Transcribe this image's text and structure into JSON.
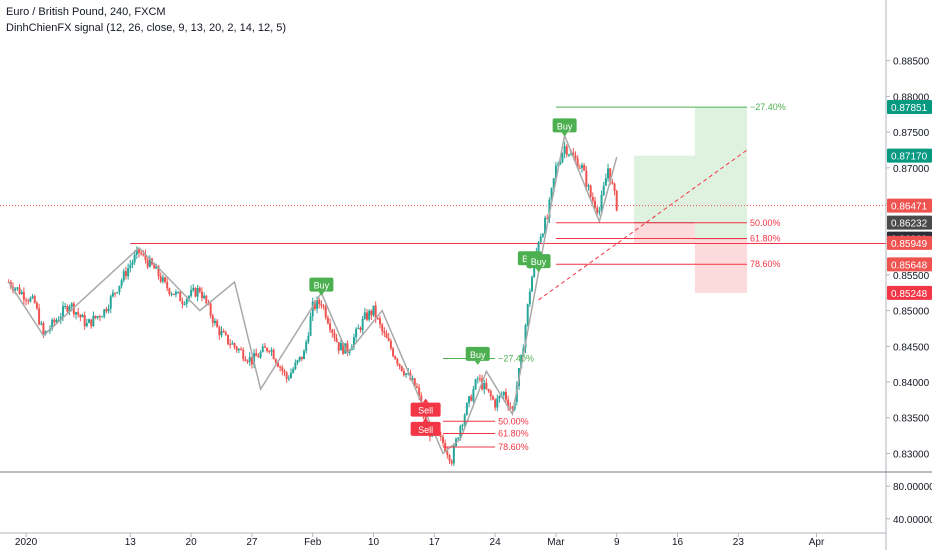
{
  "header": {
    "symbol_line": "Euro / British Pound, 240, FXCM",
    "indicator_line": "DinhChienFX signal (12, 26, close, 9, 13, 20, 2, 14, 12, 5)"
  },
  "chart_data": {
    "type": "candlestick",
    "title": "Euro / British Pound, 240, FXCM",
    "price_axis": {
      "range": [
        0.8274,
        0.8935
      ],
      "ticks": [
        "0.88500",
        "0.88000",
        "0.87500",
        "0.87000",
        "0.86500",
        "0.86000",
        "0.85500",
        "0.85000",
        "0.84500",
        "0.84000",
        "0.83500",
        "0.83000"
      ],
      "tick_values": [
        0.885,
        0.88,
        0.875,
        0.87,
        0.865,
        0.86,
        0.855,
        0.85,
        0.845,
        0.84,
        0.835,
        0.83
      ]
    },
    "indicator_axis": {
      "range": [
        25,
        95
      ],
      "ticks": [
        "80.00000",
        "40.00000"
      ],
      "tick_values": [
        80,
        40
      ]
    },
    "time_axis": {
      "range": [
        "2019-12-29",
        "2020-04-09"
      ],
      "ticks": [
        "2020",
        "13",
        "20",
        "27",
        "Feb",
        "10",
        "17",
        "24",
        "Mar",
        "9",
        "16",
        "23",
        "Apr"
      ],
      "tick_dates": [
        "2020-01-01",
        "2020-01-13",
        "2020-01-20",
        "2020-01-27",
        "2020-02-03",
        "2020-02-10",
        "2020-02-17",
        "2020-02-24",
        "2020-03-02",
        "2020-03-09",
        "2020-03-16",
        "2020-03-23",
        "2020-04-01"
      ]
    },
    "price_path": [
      [
        "2019-12-30",
        0.854
      ],
      [
        "2020-01-02",
        0.851
      ],
      [
        "2020-01-03",
        0.8465
      ],
      [
        "2020-01-06",
        0.851
      ],
      [
        "2020-01-08",
        0.848
      ],
      [
        "2020-01-10",
        0.85
      ],
      [
        "2020-01-13",
        0.8565
      ],
      [
        "2020-01-14",
        0.8582
      ],
      [
        "2020-01-16",
        0.8555
      ],
      [
        "2020-01-17",
        0.8535
      ],
      [
        "2020-01-19",
        0.8515
      ],
      [
        "2020-01-21",
        0.853
      ],
      [
        "2020-01-23",
        0.8475
      ],
      [
        "2020-01-24",
        0.846
      ],
      [
        "2020-01-27",
        0.843
      ],
      [
        "2020-01-29",
        0.845
      ],
      [
        "2020-01-31",
        0.8405
      ],
      [
        "2020-02-02",
        0.844
      ],
      [
        "2020-02-03",
        0.8505
      ],
      [
        "2020-02-04",
        0.8512
      ],
      [
        "2020-02-06",
        0.845
      ],
      [
        "2020-02-07",
        0.8445
      ],
      [
        "2020-02-09",
        0.849
      ],
      [
        "2020-02-10",
        0.85
      ],
      [
        "2020-02-11",
        0.847
      ],
      [
        "2020-02-13",
        0.8425
      ],
      [
        "2020-02-15",
        0.839
      ],
      [
        "2020-02-16",
        0.8335
      ],
      [
        "2020-02-18",
        0.8315
      ],
      [
        "2020-02-19",
        0.8292
      ],
      [
        "2020-02-20",
        0.834
      ],
      [
        "2020-02-22",
        0.8405
      ],
      [
        "2020-02-24",
        0.837
      ],
      [
        "2020-02-25",
        0.8385
      ],
      [
        "2020-02-26",
        0.836
      ],
      [
        "2020-02-27",
        0.843
      ],
      [
        "2020-02-28",
        0.853
      ],
      [
        "2020-02-29",
        0.86
      ],
      [
        "2020-03-01",
        0.863
      ],
      [
        "2020-03-02",
        0.87
      ],
      [
        "2020-03-03",
        0.873
      ],
      [
        "2020-03-05",
        0.87
      ],
      [
        "2020-03-06",
        0.866
      ],
      [
        "2020-03-07",
        0.864
      ],
      [
        "2020-03-08",
        0.87
      ],
      [
        "2020-03-09",
        0.8647
      ]
    ],
    "zigzag": [
      [
        "2019-12-30",
        0.854
      ],
      [
        "2020-01-03",
        0.8465
      ],
      [
        "2020-01-14",
        0.8588
      ],
      [
        "2020-01-21",
        0.85
      ],
      [
        "2020-01-25",
        0.854
      ],
      [
        "2020-01-28",
        0.839
      ],
      [
        "2020-02-04",
        0.8525
      ],
      [
        "2020-02-07",
        0.844
      ],
      [
        "2020-02-11",
        0.85
      ],
      [
        "2020-02-18",
        0.83
      ],
      [
        "2020-02-20",
        0.832
      ],
      [
        "2020-02-23",
        0.8415
      ],
      [
        "2020-02-26",
        0.8355
      ],
      [
        "2020-03-01",
        0.862
      ],
      [
        "2020-03-03",
        0.8745
      ],
      [
        "2020-03-07",
        0.8625
      ],
      [
        "2020-03-09",
        0.8715
      ]
    ],
    "signals": [
      {
        "label": "Buy",
        "type": "buy",
        "date": "2020-02-04",
        "price": 0.8535
      },
      {
        "label": "Sell",
        "type": "sell",
        "date": "2020-02-16",
        "price": 0.836
      },
      {
        "label": "Sell",
        "type": "sell",
        "date": "2020-02-16",
        "price": 0.8333
      },
      {
        "label": "Buy",
        "type": "buy",
        "date": "2020-02-22",
        "price": 0.8438
      },
      {
        "label": "Buy",
        "type": "buy",
        "date": "2020-02-28",
        "price": 0.8572
      },
      {
        "label": "Buy",
        "type": "buy",
        "date": "2020-02-29",
        "price": 0.8568
      },
      {
        "label": "Buy",
        "type": "buy",
        "date": "2020-03-03",
        "price": 0.8758
      }
    ],
    "level_lines": [
      {
        "label": "−27.40%",
        "price": 0.8785,
        "from": "2020-03-02",
        "to": "2020-03-24",
        "color": "#4caf50"
      },
      {
        "label": "50.00%",
        "price": 0.8623,
        "from": "2020-03-02",
        "to": "2020-03-24",
        "color": "#f23645"
      },
      {
        "label": "61.80%",
        "price": 0.8601,
        "from": "2020-03-02",
        "to": "2020-03-24",
        "color": "#f23645"
      },
      {
        "label": "78.60%",
        "price": 0.8565,
        "from": "2020-03-02",
        "to": "2020-03-24",
        "color": "#f23645"
      },
      {
        "label": "−27.40%",
        "price": 0.8433,
        "from": "2020-02-18",
        "to": "2020-02-24",
        "color": "#4caf50"
      },
      {
        "label": "50.00%",
        "price": 0.8345,
        "from": "2020-02-18",
        "to": "2020-02-24",
        "color": "#f23645"
      },
      {
        "label": "61.80%",
        "price": 0.8328,
        "from": "2020-02-18",
        "to": "2020-02-24",
        "color": "#f23645"
      },
      {
        "label": "78.60%",
        "price": 0.8309,
        "from": "2020-02-18",
        "to": "2020-02-24",
        "color": "#f23645"
      }
    ],
    "support_line": {
      "price": 0.8594,
      "from": "2020-01-13",
      "to": "2020-04-09"
    },
    "current_price_line": {
      "price": 0.86471
    },
    "trend_line": {
      "from": [
        "2020-02-29",
        0.8515
      ],
      "to": [
        "2020-03-24",
        0.8725
      ]
    },
    "dashed_line": {
      "from": [
        "2020-03-13",
        0.856
      ],
      "to": [
        "2020-03-23",
        0.865
      ]
    },
    "position_zones": [
      {
        "from": "2020-03-11",
        "to": "2020-03-18",
        "entry": 0.86232,
        "target": 0.8717,
        "stop": 0.85949
      },
      {
        "from": "2020-03-18",
        "to": "2020-03-24",
        "entry": 0.86009,
        "target": 0.87851,
        "stop": 0.85248
      }
    ],
    "price_labels": [
      {
        "text": "0.87851",
        "value": 0.87851,
        "color": "#089981"
      },
      {
        "text": "0.87170",
        "value": 0.8717,
        "color": "#089981"
      },
      {
        "text": "0.86471",
        "value": 0.86471,
        "color": "#ef5350"
      },
      {
        "text": "0.86232",
        "value": 0.86232,
        "color": "#4a4a4a"
      },
      {
        "text": "0.86009",
        "value": 0.86009,
        "color": "#2a2e39"
      },
      {
        "text": "0.85949",
        "value": 0.85949,
        "color": "#ef5350"
      },
      {
        "text": "0.85648",
        "value": 0.85648,
        "color": "#ef5350"
      },
      {
        "text": "0.85248",
        "value": 0.85248,
        "color": "#f23645"
      }
    ],
    "colors": {
      "up": "#26a69a",
      "down": "#ef5350",
      "zigzag": "#a9a9a9",
      "buy": "#4caf50",
      "sell": "#f23645",
      "axis_text": "#131722"
    }
  }
}
